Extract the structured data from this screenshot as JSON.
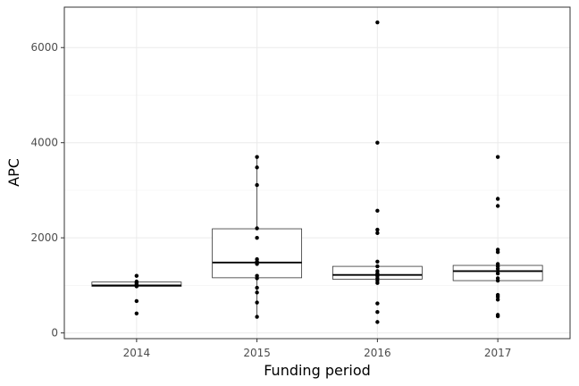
{
  "chart_data": {
    "type": "boxplot",
    "xlabel": "Funding period",
    "ylabel": "APC",
    "ylim": [
      -120,
      6850
    ],
    "yticks": [
      0,
      2000,
      4000,
      6000
    ],
    "grid": true,
    "legend": "none",
    "colors": {
      "panel_border": "#333333",
      "grid_major": "#ebebeb",
      "grid_minor": "#f4f4f4",
      "box_line": "#333333",
      "median_line": "#000000",
      "points": "#000000",
      "tick_text": "#4d4d4d",
      "axis_title": "#000000"
    },
    "categories": [
      "2014",
      "2015",
      "2016",
      "2017"
    ],
    "boxes": [
      {
        "category": "2014",
        "q1": 980,
        "median": 1000,
        "q3": 1070,
        "whisker_low": 980,
        "whisker_high": 1070,
        "points": [
          410,
          670,
          980,
          1000,
          1020,
          1050,
          1080,
          1200
        ]
      },
      {
        "category": "2015",
        "q1": 1160,
        "median": 1480,
        "q3": 2190,
        "whisker_low": 340,
        "whisker_high": 3700,
        "points": [
          340,
          640,
          850,
          950,
          1150,
          1200,
          1450,
          1500,
          1550,
          2000,
          2200,
          3110,
          3480,
          3700
        ]
      },
      {
        "category": "2016",
        "q1": 1130,
        "median": 1220,
        "q3": 1400,
        "whisker_low": 1130,
        "whisker_high": 1400,
        "points": [
          230,
          440,
          620,
          1050,
          1100,
          1150,
          1200,
          1250,
          1300,
          1400,
          1500,
          2100,
          2170,
          2570,
          4000,
          6530
        ]
      },
      {
        "category": "2017",
        "q1": 1100,
        "median": 1300,
        "q3": 1420,
        "whisker_low": 1100,
        "whisker_high": 1420,
        "points": [
          350,
          380,
          700,
          760,
          800,
          1100,
          1150,
          1250,
          1300,
          1350,
          1400,
          1450,
          1700,
          1750,
          2670,
          2820,
          3700
        ]
      }
    ]
  }
}
